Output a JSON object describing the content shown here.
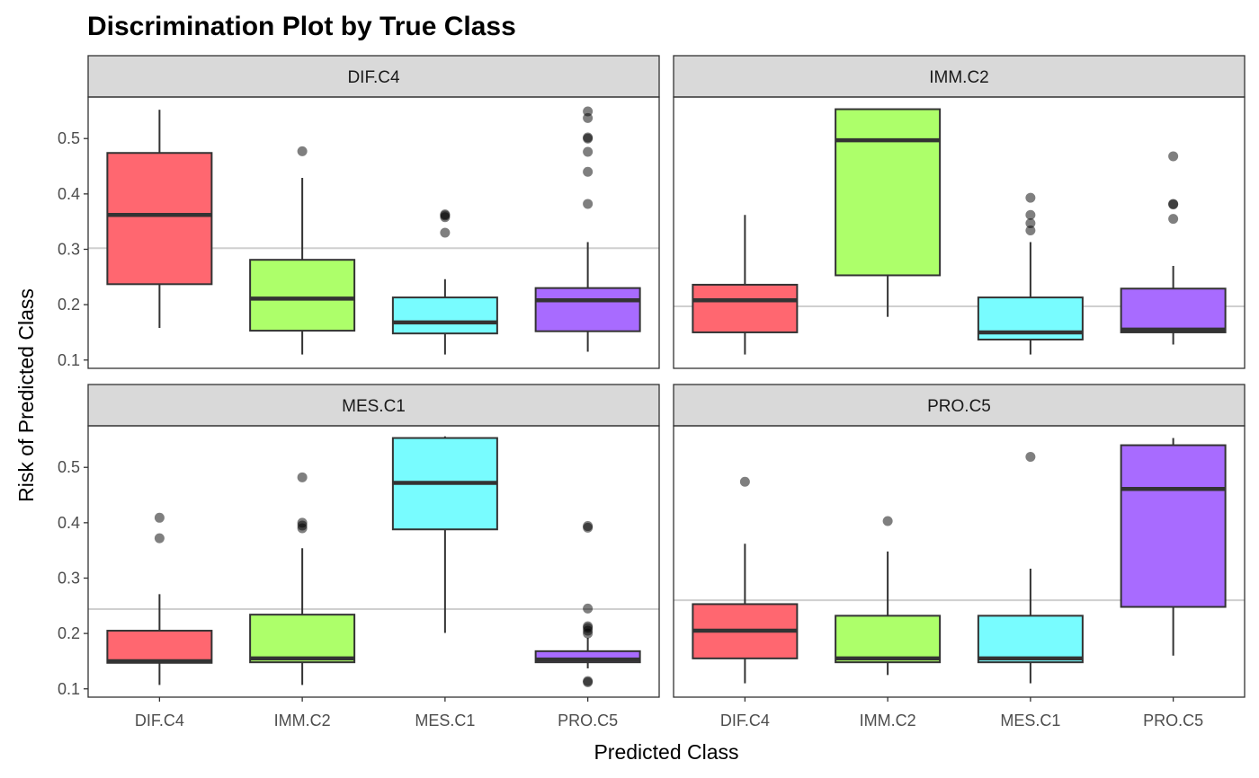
{
  "chart_data": {
    "type": "boxplot",
    "title": "Discrimination Plot by True Class",
    "xlabel": "Predicted Class",
    "ylabel": "Risk of Predicted Class",
    "categories": [
      "DIF.C4",
      "IMM.C2",
      "MES.C1",
      "PRO.C5"
    ],
    "colors": {
      "DIF.C4": "#FF6770",
      "IMM.C2": "#ADFF6A",
      "MES.C1": "#78FCFF",
      "PRO.C5": "#A86BFF"
    },
    "ylim": [
      0.085,
      0.575
    ],
    "yticks": [
      0.1,
      0.2,
      0.3,
      0.4,
      0.5
    ],
    "ytick_labels": [
      "0.1",
      "0.2",
      "0.3",
      "0.4",
      "0.5"
    ],
    "legend": "none",
    "grid": false,
    "panels": [
      {
        "facet": "DIF.C4",
        "reference_line": 0.302,
        "boxes": [
          {
            "category": "DIF.C4",
            "min": 0.158,
            "q1": 0.237,
            "median": 0.362,
            "q3": 0.474,
            "max": 0.552,
            "outliers": []
          },
          {
            "category": "IMM.C2",
            "min": 0.11,
            "q1": 0.153,
            "median": 0.211,
            "q3": 0.281,
            "max": 0.429,
            "outliers": [
              0.477
            ]
          },
          {
            "category": "MES.C1",
            "min": 0.11,
            "q1": 0.148,
            "median": 0.168,
            "q3": 0.213,
            "max": 0.246,
            "outliers": [
              0.33,
              0.358,
              0.361,
              0.363
            ]
          },
          {
            "category": "PRO.C5",
            "min": 0.115,
            "q1": 0.152,
            "median": 0.208,
            "q3": 0.23,
            "max": 0.313,
            "outliers": [
              0.382,
              0.44,
              0.476,
              0.5,
              0.502,
              0.537,
              0.549
            ]
          }
        ]
      },
      {
        "facet": "IMM.C2",
        "reference_line": 0.197,
        "boxes": [
          {
            "category": "DIF.C4",
            "min": 0.11,
            "q1": 0.15,
            "median": 0.208,
            "q3": 0.236,
            "max": 0.362,
            "outliers": []
          },
          {
            "category": "IMM.C2",
            "min": 0.178,
            "q1": 0.253,
            "median": 0.497,
            "q3": 0.553,
            "max": 0.553,
            "outliers": []
          },
          {
            "category": "MES.C1",
            "min": 0.11,
            "q1": 0.137,
            "median": 0.15,
            "q3": 0.213,
            "max": 0.313,
            "outliers": [
              0.334,
              0.347,
              0.362,
              0.393
            ]
          },
          {
            "category": "PRO.C5",
            "min": 0.128,
            "q1": 0.15,
            "median": 0.155,
            "q3": 0.229,
            "max": 0.27,
            "outliers": [
              0.355,
              0.381,
              0.382,
              0.468
            ]
          }
        ]
      },
      {
        "facet": "MES.C1",
        "reference_line": 0.244,
        "boxes": [
          {
            "category": "DIF.C4",
            "min": 0.107,
            "q1": 0.147,
            "median": 0.15,
            "q3": 0.205,
            "max": 0.271,
            "outliers": [
              0.372,
              0.409
            ]
          },
          {
            "category": "IMM.C2",
            "min": 0.107,
            "q1": 0.148,
            "median": 0.155,
            "q3": 0.234,
            "max": 0.354,
            "outliers": [
              0.39,
              0.395,
              0.4,
              0.482
            ]
          },
          {
            "category": "MES.C1",
            "min": 0.201,
            "q1": 0.388,
            "median": 0.472,
            "q3": 0.553,
            "max": 0.556,
            "outliers": []
          },
          {
            "category": "PRO.C5",
            "min": 0.137,
            "q1": 0.148,
            "median": 0.153,
            "q3": 0.168,
            "max": 0.192,
            "outliers": [
              0.112,
              0.114,
              0.2,
              0.205,
              0.21,
              0.213,
              0.245,
              0.391,
              0.394
            ]
          }
        ]
      },
      {
        "facet": "PRO.C5",
        "reference_line": 0.26,
        "boxes": [
          {
            "category": "DIF.C4",
            "min": 0.11,
            "q1": 0.155,
            "median": 0.205,
            "q3": 0.253,
            "max": 0.362,
            "outliers": [
              0.474
            ]
          },
          {
            "category": "IMM.C2",
            "min": 0.125,
            "q1": 0.148,
            "median": 0.155,
            "q3": 0.232,
            "max": 0.348,
            "outliers": [
              0.403
            ]
          },
          {
            "category": "MES.C1",
            "min": 0.11,
            "q1": 0.148,
            "median": 0.155,
            "q3": 0.232,
            "max": 0.317,
            "outliers": [
              0.519
            ]
          },
          {
            "category": "PRO.C5",
            "min": 0.16,
            "q1": 0.248,
            "median": 0.461,
            "q3": 0.54,
            "max": 0.553,
            "outliers": []
          }
        ]
      }
    ]
  }
}
